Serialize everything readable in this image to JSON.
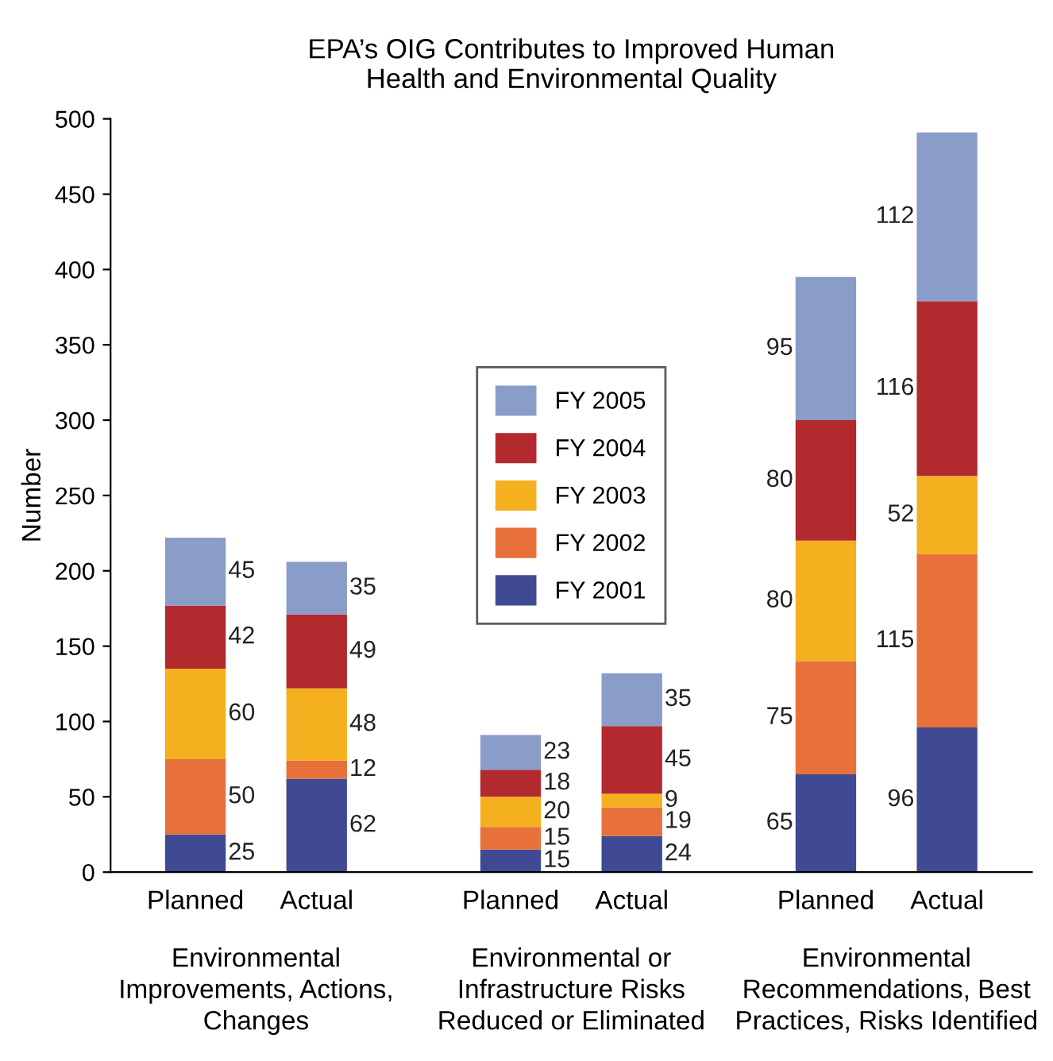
{
  "chart_data": {
    "type": "bar",
    "title": "EPA’s OIG Contributes to Improved Human\nHealth and Environmental Quality",
    "ylabel": "Number",
    "categories": [
      "Planned",
      "Actual",
      "Planned",
      "Actual",
      "Planned",
      "Actual"
    ],
    "stacked": true,
    "data_labels": true,
    "series": [
      {
        "name": "FY 2001",
        "color": "#3f4a93",
        "values": [
          25,
          62,
          15,
          24,
          65,
          96
        ]
      },
      {
        "name": "FY 2002",
        "color": "#e8703a",
        "values": [
          50,
          12,
          15,
          19,
          75,
          115
        ]
      },
      {
        "name": "FY 2003",
        "color": "#f5b020",
        "values": [
          60,
          48,
          20,
          9,
          80,
          52
        ]
      },
      {
        "name": "FY 2004",
        "color": "#b22a2e",
        "values": [
          42,
          49,
          18,
          45,
          80,
          116
        ]
      },
      {
        "name": "FY 2005",
        "color": "#8a9cc8",
        "values": [
          45,
          35,
          23,
          35,
          95,
          112
        ]
      }
    ],
    "annotations": [
      "Environmental\nImprovements, Actions,\nChanges",
      "Environmental or\nInfrastructure Risks\nReduced or Eliminated",
      "Environmental\nRecommendations, Best\nPractices, Risks Identified"
    ],
    "ylim": [
      0,
      500
    ],
    "yticks": [
      0,
      50,
      100,
      150,
      200,
      250,
      300,
      350,
      400,
      450,
      500
    ],
    "grid": false,
    "legend": "center"
  }
}
